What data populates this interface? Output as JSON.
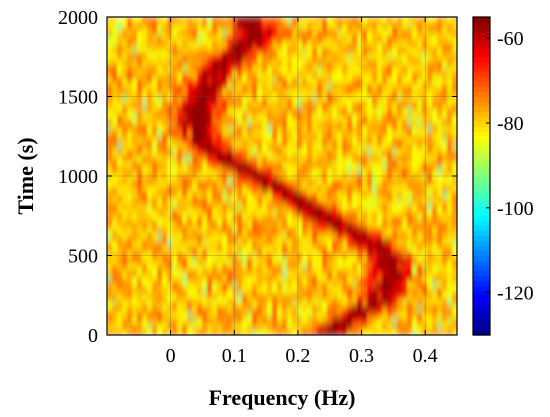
{
  "chart_data": {
    "type": "heatmap",
    "title": "",
    "xlabel": "Frequency (Hz)",
    "ylabel": "Time (s)",
    "xlim": [
      -0.1,
      0.45
    ],
    "ylim": [
      0,
      2000
    ],
    "x_ticks": [
      {
        "value": 0,
        "label": "0"
      },
      {
        "value": 0.1,
        "label": "0.1"
      },
      {
        "value": 0.2,
        "label": "0.2"
      },
      {
        "value": 0.3,
        "label": "0.3"
      },
      {
        "value": 0.4,
        "label": "0.4"
      }
    ],
    "y_ticks": [
      {
        "value": 0,
        "label": "0"
      },
      {
        "value": 500,
        "label": "500"
      },
      {
        "value": 1000,
        "label": "1000"
      },
      {
        "value": 1500,
        "label": "1500"
      },
      {
        "value": 2000,
        "label": "2000"
      }
    ],
    "grid": true,
    "colormap": "jet",
    "colorbar": {
      "range": [
        -130,
        -55
      ],
      "ticks": [
        {
          "value": -60,
          "label": "-60"
        },
        {
          "value": -80,
          "label": "-80"
        },
        {
          "value": -100,
          "label": "-100"
        },
        {
          "value": -120,
          "label": "-120"
        }
      ]
    },
    "background_level": -78,
    "peak_level": -57,
    "ridge": {
      "time": [
        0,
        100,
        200,
        300,
        400,
        500,
        600,
        700,
        800,
        900,
        1000,
        1100,
        1200,
        1300,
        1400,
        1500,
        1600,
        1700,
        1800,
        1900,
        2000
      ],
      "frequency": [
        0.24,
        0.28,
        0.32,
        0.345,
        0.35,
        0.34,
        0.31,
        0.26,
        0.22,
        0.18,
        0.135,
        0.09,
        0.055,
        0.04,
        0.04,
        0.05,
        0.06,
        0.08,
        0.11,
        0.135,
        0.12
      ]
    }
  }
}
